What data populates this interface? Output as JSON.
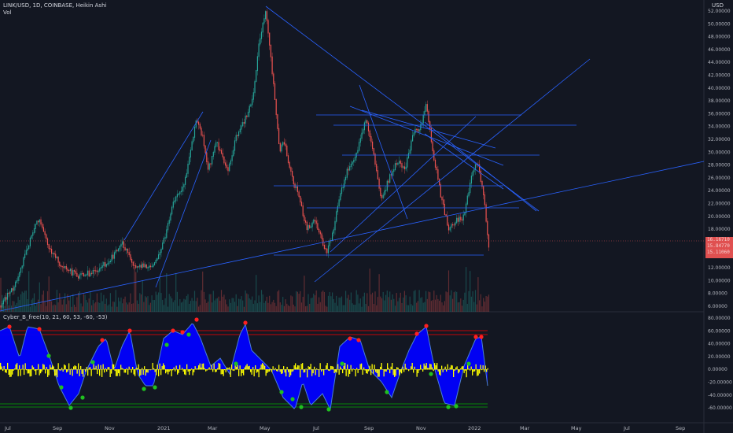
{
  "header": {
    "symbol_line": "LINK/USD, 1D, COINBASE, Heikin Ashi",
    "volume_label": "Vol",
    "currency": "USD"
  },
  "oscillator": {
    "title": "Cyber_B_free(10, 21, 60, 53, -60, -53)"
  },
  "price_axis": {
    "ticks": [
      "52.00000",
      "50.00000",
      "48.00000",
      "46.00000",
      "44.00000",
      "42.00000",
      "40.00000",
      "38.00000",
      "36.00000",
      "34.00000",
      "32.00000",
      "30.00000",
      "28.00000",
      "26.00000",
      "24.00000",
      "22.00000",
      "20.00000",
      "18.00000",
      "16.00000",
      "14.00000",
      "12.00000",
      "10.00000",
      "8.00000",
      "6.00000"
    ]
  },
  "osc_axis": {
    "ticks": [
      "80.00000",
      "60.00000",
      "40.00000",
      "20.00000",
      "0.00000",
      "-20.00000",
      "-40.00000",
      "-60.00000"
    ]
  },
  "time_axis": {
    "labels": [
      "Jul",
      "Sep",
      "Nov",
      "2021",
      "Mar",
      "May",
      "Jul",
      "Sep",
      "Nov",
      "2022",
      "Mar",
      "May",
      "Jul",
      "Sep"
    ]
  },
  "price_tag": {
    "lines": [
      "16.16710",
      "15.84770",
      "15.11060"
    ]
  },
  "colors": {
    "background": "#131722",
    "bull": "#26a69a",
    "bear": "#ef5350",
    "trendline": "#2962ff",
    "osc_fill": "#0000ff",
    "osc_yellow": "#ffff00",
    "osc_red_level": "#ff0000",
    "osc_green_level": "#00aa00"
  }
}
